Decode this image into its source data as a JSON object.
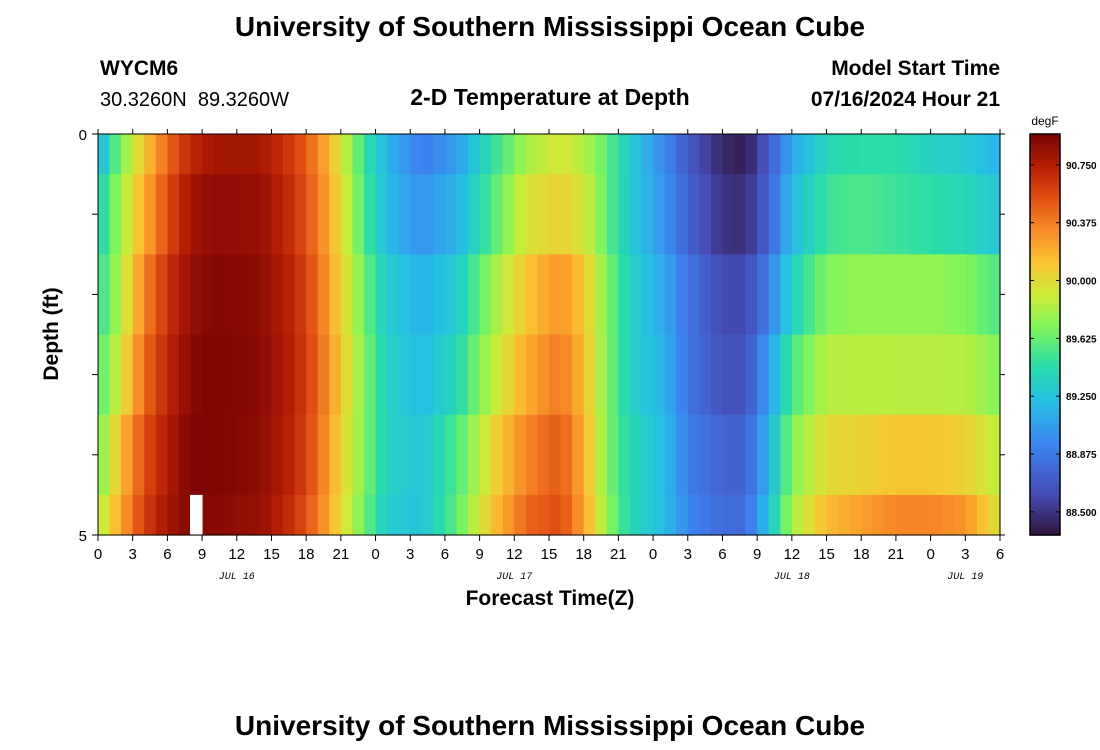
{
  "header": {
    "title": "University of Southern Mississippi Ocean Cube",
    "station": "WYCM6",
    "coords": "30.3260N  89.3260W",
    "subtitle": "2-D Temperature at Depth",
    "model_start_label": "Model Start Time",
    "model_start_value": "07/16/2024 Hour 21"
  },
  "footer": {
    "title": "University of Southern Mississippi Ocean Cube"
  },
  "chart_data": {
    "type": "heatmap",
    "title": "2-D Temperature at Depth",
    "xlabel": "Forecast Time(Z)",
    "ylabel": "Depth (ft)",
    "x_tick_labels": [
      "0",
      "3",
      "6",
      "9",
      "12",
      "15",
      "18",
      "21",
      "0",
      "3",
      "6",
      "9",
      "12",
      "15",
      "18",
      "21",
      "0",
      "3",
      "6",
      "9",
      "12",
      "15",
      "18",
      "21",
      "0",
      "3",
      "6"
    ],
    "day_labels": [
      {
        "label": "JUL 16",
        "hour_index": 12
      },
      {
        "label": "JUL 17",
        "hour_index": 36
      },
      {
        "label": "JUL 18",
        "hour_index": 60
      },
      {
        "label": "JUL 19",
        "hour_index": 75
      }
    ],
    "x_range_hours": [
      0,
      78
    ],
    "y_tick_labels": [
      "0",
      "5"
    ],
    "y_range_ft": [
      0,
      5
    ],
    "depth_layers_ft": [
      [
        0,
        0.5
      ],
      [
        0.5,
        1.5
      ],
      [
        1.5,
        2.5
      ],
      [
        2.5,
        3.5
      ],
      [
        3.5,
        4.5
      ],
      [
        4.5,
        5
      ]
    ],
    "colorbar": {
      "unit": "degF",
      "range": [
        88.35,
        90.95
      ],
      "ticks": [
        "90.750",
        "90.375",
        "90.000",
        "89.625",
        "89.250",
        "88.875",
        "88.500"
      ]
    },
    "missing_marker": {
      "hour": 8,
      "depth_ft": [
        4.5,
        5
      ]
    },
    "profile_keyframes": [
      {
        "hour": 0,
        "values": [
          89.15,
          89.35,
          89.45,
          89.55,
          89.65,
          89.8
        ]
      },
      {
        "hour": 2,
        "values": [
          89.7,
          89.8,
          89.85,
          89.95,
          90.15,
          90.25
        ]
      },
      {
        "hour": 4,
        "values": [
          90.1,
          90.2,
          90.35,
          90.45,
          90.55,
          90.6
        ]
      },
      {
        "hour": 6,
        "values": [
          90.45,
          90.55,
          90.65,
          90.7,
          90.75,
          90.8
        ]
      },
      {
        "hour": 8,
        "values": [
          90.7,
          90.8,
          90.85,
          90.9,
          90.93,
          90.93
        ]
      },
      {
        "hour": 10,
        "values": [
          90.8,
          90.88,
          90.92,
          90.93,
          90.93,
          90.9
        ]
      },
      {
        "hour": 14,
        "values": [
          90.8,
          90.85,
          90.88,
          90.9,
          90.88,
          90.85
        ]
      },
      {
        "hour": 17,
        "values": [
          90.6,
          90.65,
          90.7,
          90.72,
          90.7,
          90.65
        ]
      },
      {
        "hour": 19,
        "values": [
          90.35,
          90.4,
          90.45,
          90.48,
          90.45,
          90.4
        ]
      },
      {
        "hour": 21,
        "values": [
          89.95,
          90.0,
          90.05,
          90.1,
          90.05,
          90.0
        ]
      },
      {
        "hour": 23,
        "values": [
          89.5,
          89.55,
          89.65,
          89.7,
          89.7,
          89.65
        ]
      },
      {
        "hour": 25,
        "values": [
          89.15,
          89.2,
          89.3,
          89.35,
          89.35,
          89.3
        ]
      },
      {
        "hour": 28,
        "values": [
          88.9,
          89.0,
          89.15,
          89.2,
          89.25,
          89.25
        ]
      },
      {
        "hour": 31,
        "values": [
          89.05,
          89.15,
          89.3,
          89.4,
          89.55,
          89.6
        ]
      },
      {
        "hour": 34,
        "values": [
          89.45,
          89.55,
          89.75,
          89.85,
          90.0,
          90.1
        ]
      },
      {
        "hour": 37,
        "values": [
          89.8,
          89.95,
          90.1,
          90.2,
          90.35,
          90.45
        ]
      },
      {
        "hour": 40,
        "values": [
          89.95,
          90.05,
          90.3,
          90.4,
          90.5,
          90.55
        ]
      },
      {
        "hour": 42,
        "values": [
          89.85,
          89.95,
          90.1,
          90.15,
          90.2,
          90.25
        ]
      },
      {
        "hour": 44,
        "values": [
          89.6,
          89.6,
          89.7,
          89.7,
          89.7,
          89.75
        ]
      },
      {
        "hour": 46,
        "values": [
          89.3,
          89.3,
          89.35,
          89.35,
          89.4,
          89.4
        ]
      },
      {
        "hour": 49,
        "values": [
          88.95,
          89.0,
          89.1,
          89.15,
          89.2,
          89.2
        ]
      },
      {
        "hour": 51,
        "values": [
          88.7,
          88.75,
          88.85,
          88.85,
          88.9,
          88.95
        ]
      },
      {
        "hour": 54,
        "values": [
          88.45,
          88.5,
          88.6,
          88.65,
          88.75,
          88.8
        ]
      },
      {
        "hour": 56,
        "values": [
          88.4,
          88.48,
          88.6,
          88.65,
          88.75,
          88.8
        ]
      },
      {
        "hour": 58,
        "values": [
          88.7,
          88.75,
          88.9,
          89.05,
          89.15,
          89.25
        ]
      },
      {
        "hour": 60,
        "values": [
          89.1,
          89.2,
          89.35,
          89.55,
          89.7,
          89.8
        ]
      },
      {
        "hour": 63,
        "values": [
          89.4,
          89.5,
          89.7,
          89.85,
          90.0,
          90.15
        ]
      },
      {
        "hour": 66,
        "values": [
          89.45,
          89.55,
          89.75,
          89.85,
          90.05,
          90.25
        ]
      },
      {
        "hour": 69,
        "values": [
          89.45,
          89.5,
          89.75,
          89.85,
          90.1,
          90.35
        ]
      },
      {
        "hour": 72,
        "values": [
          89.35,
          89.45,
          89.75,
          89.85,
          90.1,
          90.35
        ]
      },
      {
        "hour": 75,
        "values": [
          89.3,
          89.4,
          89.7,
          89.85,
          90.05,
          90.3
        ]
      },
      {
        "hour": 78,
        "values": [
          89.15,
          89.25,
          89.55,
          89.7,
          89.85,
          89.95
        ]
      }
    ]
  }
}
